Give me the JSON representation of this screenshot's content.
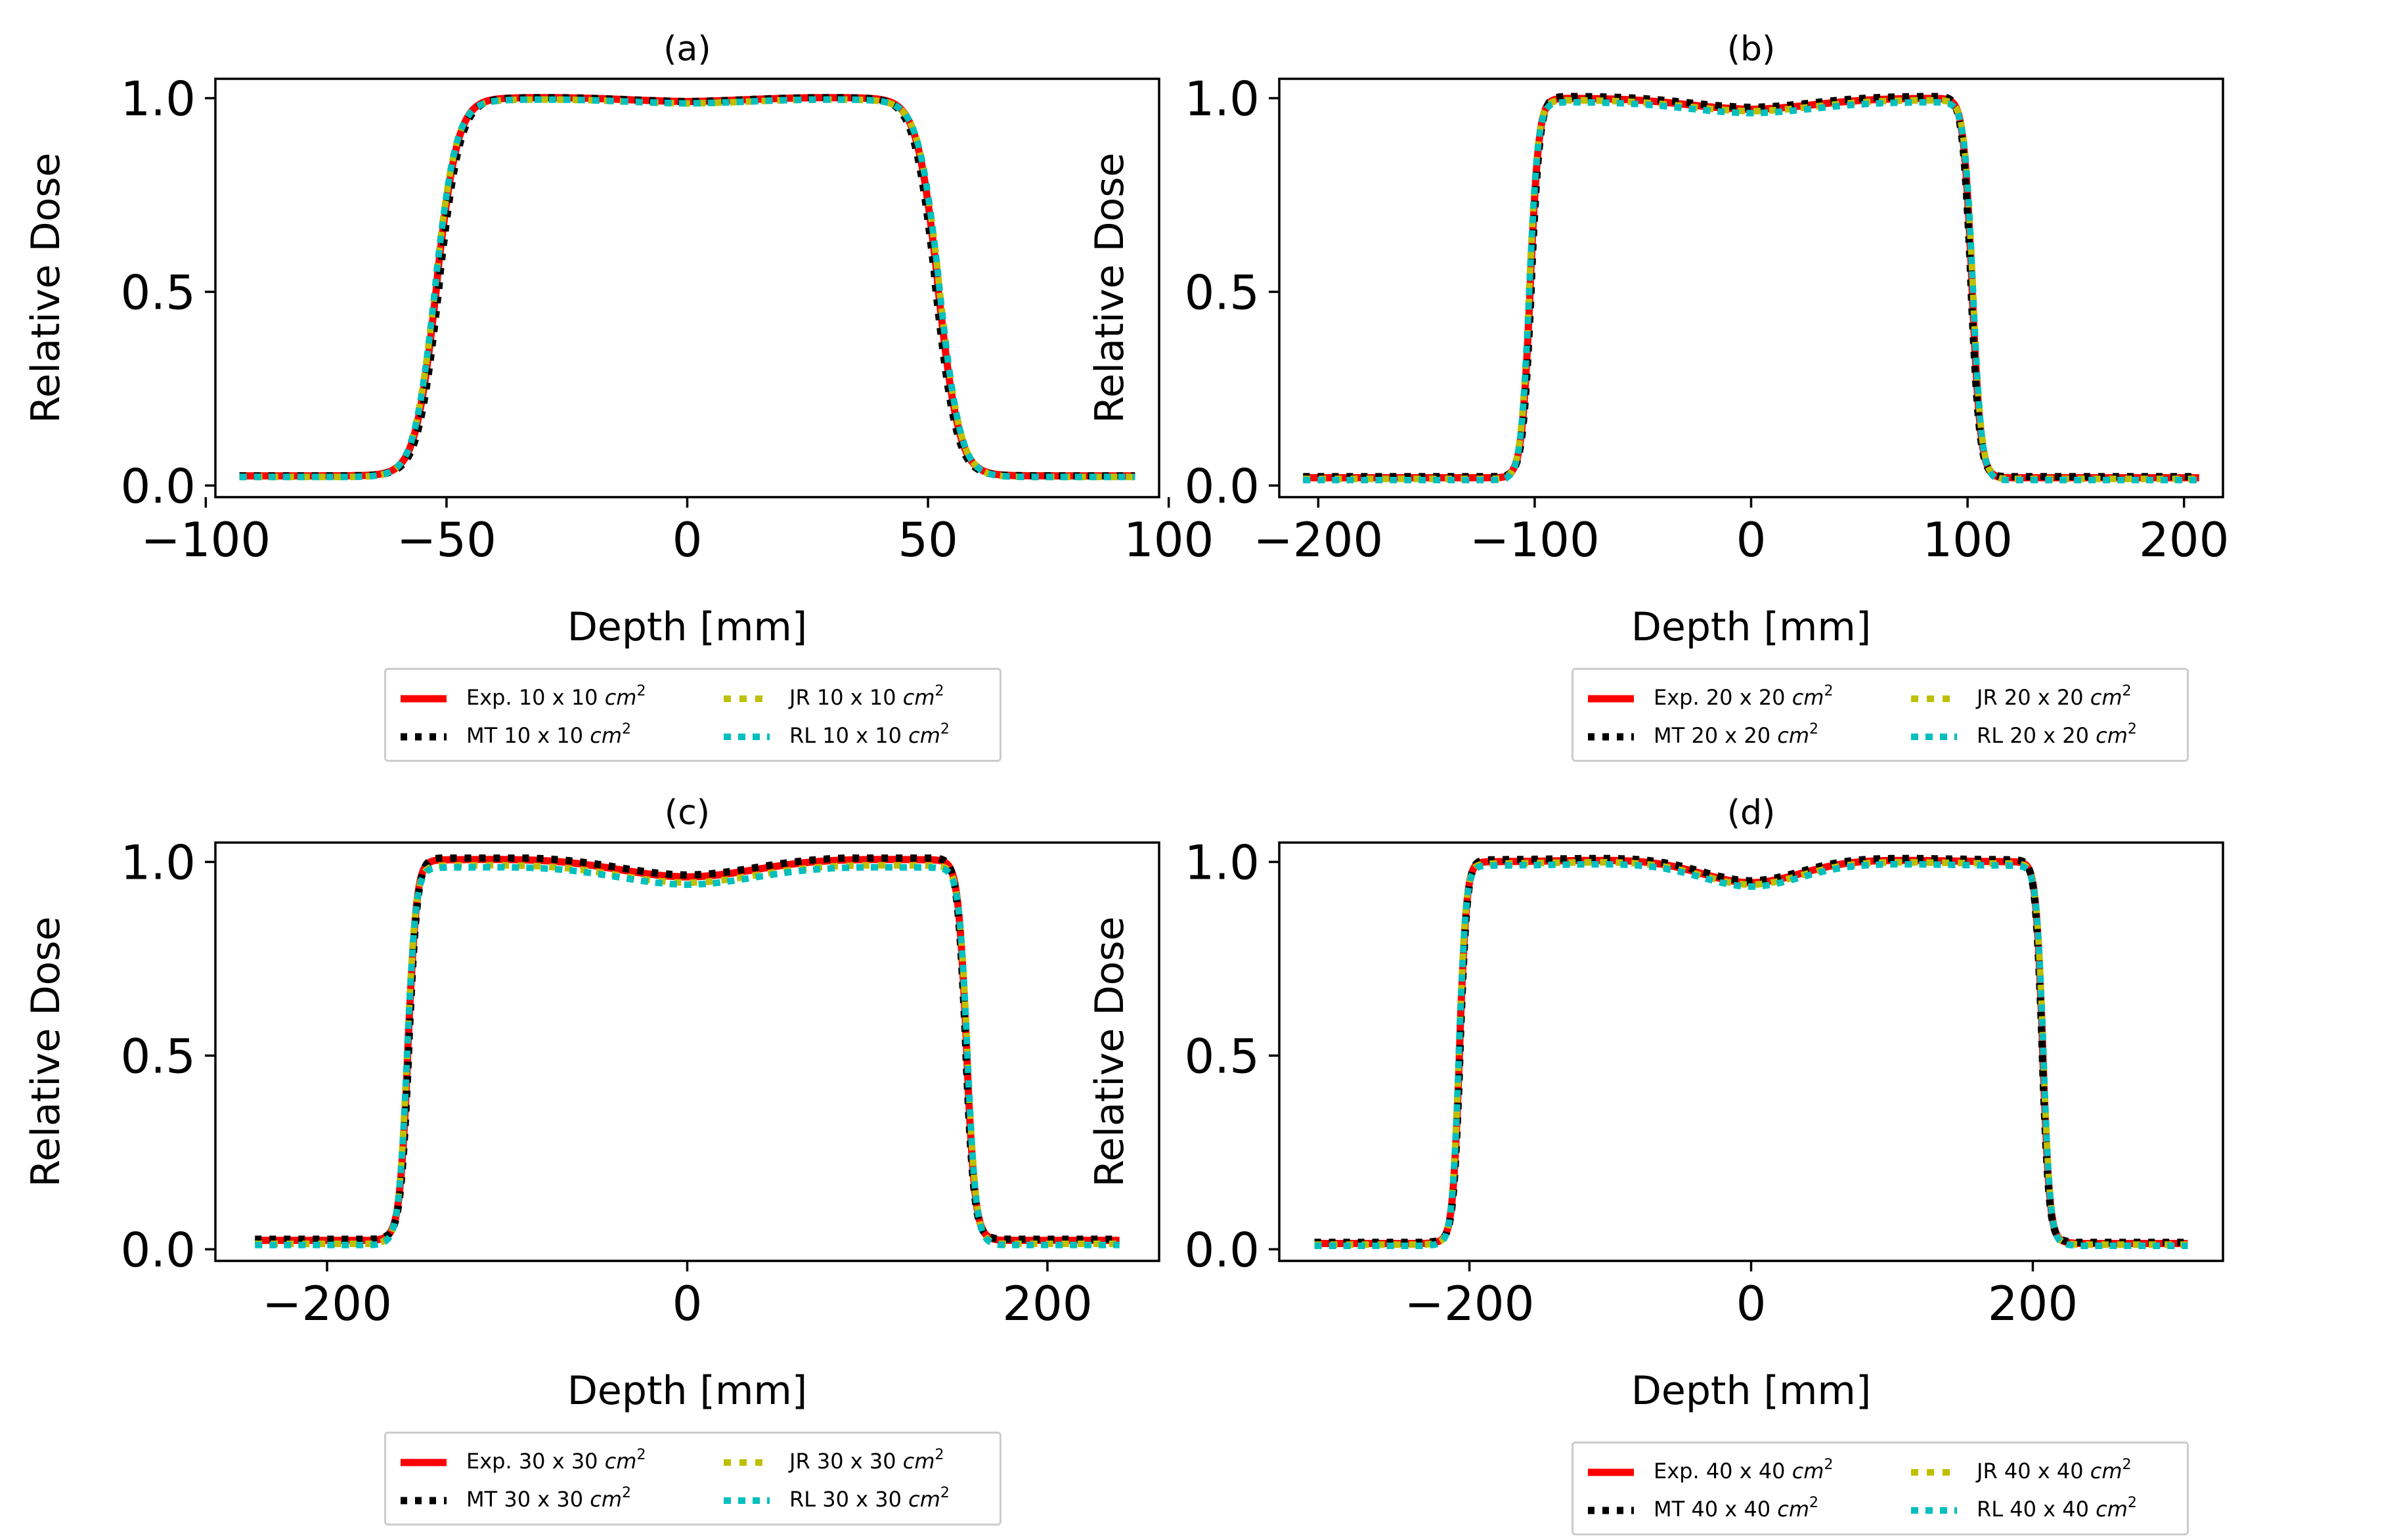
{
  "colors": {
    "exp": "#ff0000",
    "mt": "#000000",
    "jr": "#bfbf00",
    "rl": "#00bfbf",
    "axes": "#000000",
    "legend_border": "#cccccc"
  },
  "legend": {
    "unit_prefix": "cm",
    "unit_power": "2"
  },
  "chart_data": [
    {
      "type": "line",
      "title": "(a)",
      "xlabel": "Depth [mm]",
      "ylabel": "Relative Dose",
      "field_size_cm": 10,
      "xlim": [
        -98,
        98
      ],
      "ylim": [
        -0.03,
        1.05
      ],
      "xticks": [
        -100,
        -50,
        0,
        50,
        100
      ],
      "xtick_labels": [
        "−100",
        "−50",
        "0",
        "50",
        "100"
      ],
      "yticks": [
        0.0,
        0.5,
        1.0
      ],
      "ytick_labels": [
        "0.0",
        "0.5",
        "1.0"
      ],
      "x_range": [
        -93,
        93
      ],
      "profile": {
        "edge": 52,
        "width": 2.2,
        "tail": 0.025,
        "dip": 0.01,
        "dip_w": 18,
        "shoulder": 0.0
      },
      "series": [
        {
          "key": "exp",
          "name": "Exp. 10 x 10 ",
          "color": "#ff0000",
          "offset": 0.0,
          "edge_shift": 0.0
        },
        {
          "key": "mt",
          "name": "MT 10 x 10 ",
          "color": "#000000",
          "offset": 0.0,
          "edge_shift": -0.5
        },
        {
          "key": "jr",
          "name": "JR 10 x 10 ",
          "color": "#bfbf00",
          "offset": -0.005,
          "edge_shift": 0.3
        },
        {
          "key": "rl",
          "name": "RL 10 x 10 ",
          "color": "#00bfbf",
          "offset": -0.005,
          "edge_shift": 0.3
        }
      ]
    },
    {
      "type": "line",
      "title": "(b)",
      "xlabel": "Depth [mm]",
      "ylabel": "Relative Dose",
      "field_size_cm": 20,
      "xlim": [
        -218,
        218
      ],
      "ylim": [
        -0.03,
        1.05
      ],
      "xticks": [
        -200,
        -100,
        0,
        100,
        200
      ],
      "xtick_labels": [
        "−200",
        "−100",
        "0",
        "100",
        "200"
      ],
      "yticks": [
        0.0,
        0.5,
        1.0
      ],
      "ytick_labels": [
        "0.0",
        "0.5",
        "1.0"
      ],
      "x_range": [
        -207,
        207
      ],
      "profile": {
        "edge": 102,
        "width": 2.0,
        "tail": 0.02,
        "dip": 0.03,
        "dip_w": 35,
        "shoulder": 0.0
      },
      "series": [
        {
          "key": "exp",
          "name": "Exp. 20 x 20 ",
          "color": "#ff0000",
          "offset": 0.0,
          "edge_shift": 0.0
        },
        {
          "key": "mt",
          "name": "MT 20 x 20 ",
          "color": "#000000",
          "offset": 0.005,
          "edge_shift": -0.5
        },
        {
          "key": "jr",
          "name": "JR 20 x 20 ",
          "color": "#bfbf00",
          "offset": -0.005,
          "edge_shift": 0.4
        },
        {
          "key": "rl",
          "name": "RL 20 x 20 ",
          "color": "#00bfbf",
          "offset": -0.01,
          "edge_shift": 0.4
        }
      ]
    },
    {
      "type": "line",
      "title": "(c)",
      "xlabel": "Depth [mm]",
      "ylabel": "Relative Dose",
      "field_size_cm": 30,
      "xlim": [
        -262,
        262
      ],
      "ylim": [
        -0.03,
        1.05
      ],
      "xticks": [
        -200,
        0,
        200
      ],
      "xtick_labels": [
        "−200",
        "0",
        "200"
      ],
      "yticks": [
        0.0,
        0.5,
        1.0
      ],
      "ytick_labels": [
        "0.0",
        "0.5",
        "1.0"
      ],
      "x_range": [
        -240,
        240
      ],
      "profile": {
        "edge": 155,
        "width": 2.4,
        "tail": 0.02,
        "dip": 0.045,
        "dip_w": 40,
        "shoulder": 0.0
      },
      "series": [
        {
          "key": "exp",
          "name": "Exp. 30 x 30 ",
          "color": "#ff0000",
          "offset": 0.005,
          "edge_shift": 0.0
        },
        {
          "key": "mt",
          "name": "MT 30 x 30 ",
          "color": "#000000",
          "offset": 0.01,
          "edge_shift": -0.5
        },
        {
          "key": "jr",
          "name": "JR 30 x 30 ",
          "color": "#bfbf00",
          "offset": -0.01,
          "edge_shift": 0.5
        },
        {
          "key": "rl",
          "name": "RL 30 x 30 ",
          "color": "#00bfbf",
          "offset": -0.015,
          "edge_shift": 0.5
        }
      ]
    },
    {
      "type": "line",
      "title": "(d)",
      "xlabel": "Depth [mm]",
      "ylabel": "Relative Dose",
      "field_size_cm": 40,
      "xlim": [
        -335,
        335
      ],
      "ylim": [
        -0.03,
        1.05
      ],
      "xticks": [
        -200,
        0,
        200
      ],
      "xtick_labels": [
        "−200",
        "0",
        "200"
      ],
      "yticks": [
        0.0,
        0.5,
        1.0
      ],
      "ytick_labels": [
        "0.0",
        "0.5",
        "1.0"
      ],
      "x_range": [
        -310,
        310
      ],
      "profile": {
        "edge": 207,
        "width": 2.5,
        "tail": 0.015,
        "dip": 0.055,
        "dip_w": 35,
        "shoulder": 0.0
      },
      "series": [
        {
          "key": "exp",
          "name": "Exp. 40 x 40 ",
          "color": "#ff0000",
          "offset": 0.0,
          "edge_shift": 0.0
        },
        {
          "key": "mt",
          "name": "MT 40 x 40 ",
          "color": "#000000",
          "offset": 0.005,
          "edge_shift": -0.5
        },
        {
          "key": "jr",
          "name": "JR 40 x 40 ",
          "color": "#bfbf00",
          "offset": -0.005,
          "edge_shift": 0.4
        },
        {
          "key": "rl",
          "name": "RL 40 x 40 ",
          "color": "#00bfbf",
          "offset": -0.01,
          "edge_shift": 0.4
        }
      ]
    }
  ]
}
